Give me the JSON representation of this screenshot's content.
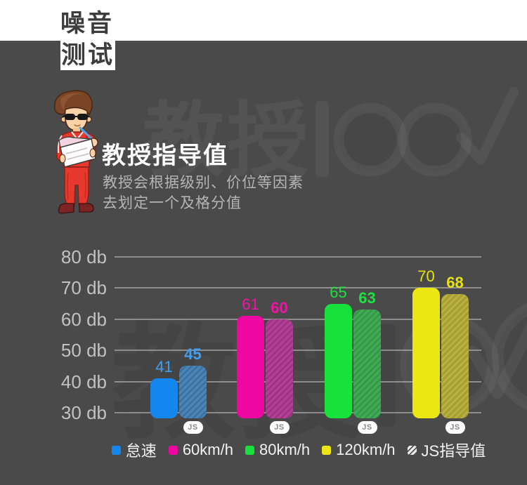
{
  "page": {
    "background": "#4a4a4a",
    "top_strip_color": "#ffffff"
  },
  "header": {
    "title_line1": "噪音",
    "title_line2": "测试"
  },
  "intro": {
    "heading": "教授指导值",
    "subtitle_line1": "教授会根据级别、价位等因素",
    "subtitle_line2": "去划定一个及格分值"
  },
  "watermark": {
    "text": "教授100",
    "style": "brand logo with check-mark through last zero"
  },
  "mascot": {
    "name": "professor-cartoon",
    "description": "cartoon man, brown hair, sunglasses, red tracksuit, writing on white notepad with blue pen"
  },
  "chart_data": {
    "type": "bar",
    "title": "教授指导值",
    "unit": "db",
    "categories": [
      "怠速",
      "60km/h",
      "80km/h",
      "120km/h"
    ],
    "series": [
      {
        "name": "",
        "style": "solid",
        "values": [
          41,
          61,
          65,
          70
        ]
      },
      {
        "name": "JS指导值",
        "style": "hatch",
        "values": [
          45,
          60,
          63,
          68
        ]
      }
    ],
    "y_ticks": [
      "80 db",
      "70 db",
      "60 db",
      "50 db",
      "40 db",
      "30 db"
    ],
    "ylim": [
      30,
      80
    ],
    "grid": true,
    "badge_label": "JS",
    "legend_position": "bottom",
    "palette": [
      {
        "category": "怠速",
        "solid": "#1486ee",
        "hatch_base": "#4a84b6",
        "hatch_stripe": "#3b6e9e",
        "value_label": "#3f9ff2"
      },
      {
        "category": "60km/h",
        "solid": "#ee07a0",
        "hatch_base": "#b13f94",
        "hatch_stripe": "#9a3181",
        "value_label": "#f311a6"
      },
      {
        "category": "80km/h",
        "solid": "#17e23c",
        "hatch_base": "#3faa54",
        "hatch_stripe": "#349447",
        "value_label": "#1ae23e"
      },
      {
        "category": "120km/h",
        "solid": "#ece613",
        "hatch_base": "#a9a233",
        "hatch_stripe": "#bcb447",
        "value_label": "#e8e20e"
      }
    ],
    "legend": [
      {
        "label": "怠速",
        "swatch": "#1486ee"
      },
      {
        "label": "60km/h",
        "swatch": "#ee07a0"
      },
      {
        "label": "80km/h",
        "swatch": "#17e23c"
      },
      {
        "label": "120km/h",
        "swatch": "#ece613"
      },
      {
        "label": "JS指导值",
        "swatch": "hatch"
      }
    ]
  }
}
